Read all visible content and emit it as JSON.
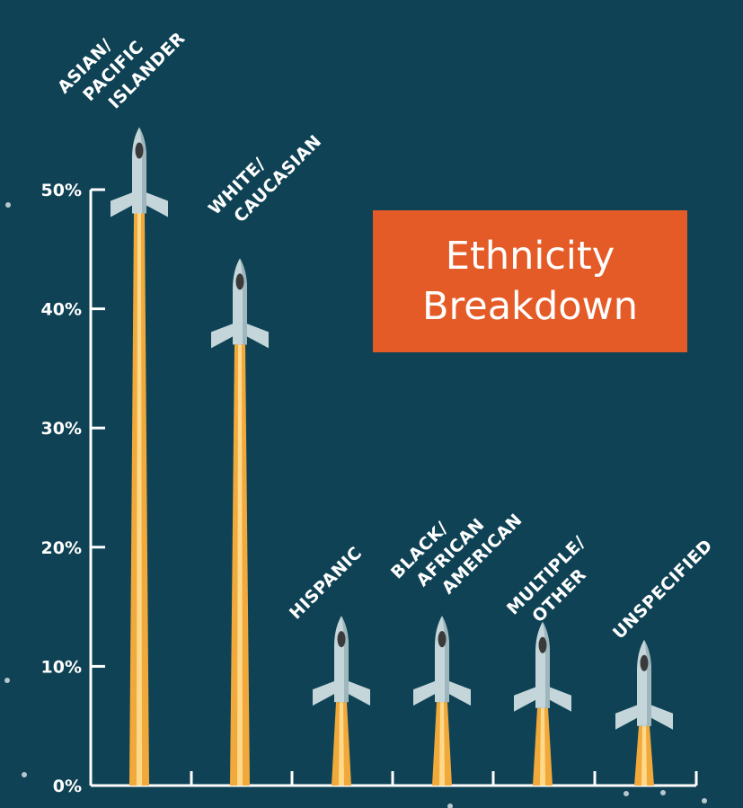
{
  "title": {
    "line1": "Ethnicity",
    "line2": "Breakdown"
  },
  "colors": {
    "background": "#0f4254",
    "title_box": "#e55b27",
    "trail_outer": "#f2a93b",
    "trail_inner": "#ffd98a",
    "rocket_body": "#c5d6db",
    "rocket_nose": "#3a3a3a",
    "axis": "#ffffff"
  },
  "chart_data": {
    "type": "bar",
    "categories": [
      [
        "ASIAN/",
        "PACIFIC",
        "ISLANDER"
      ],
      [
        "WHITE/",
        "CAUCASIAN"
      ],
      [
        "HISPANIC"
      ],
      [
        "BLACK/",
        "AFRICAN",
        "AMERICAN"
      ],
      [
        "MULTIPLE/",
        "OTHER"
      ],
      [
        "UNSPECIFIED"
      ]
    ],
    "values": [
      48,
      37,
      7,
      7,
      6.5,
      5
    ],
    "ylim": [
      0,
      50
    ],
    "yticks": [
      0,
      10,
      20,
      30,
      40,
      50
    ],
    "ytick_labels": [
      "0%",
      "10%",
      "20%",
      "30%",
      "40%",
      "50%"
    ],
    "bar_style": "rocket",
    "grid": false
  }
}
